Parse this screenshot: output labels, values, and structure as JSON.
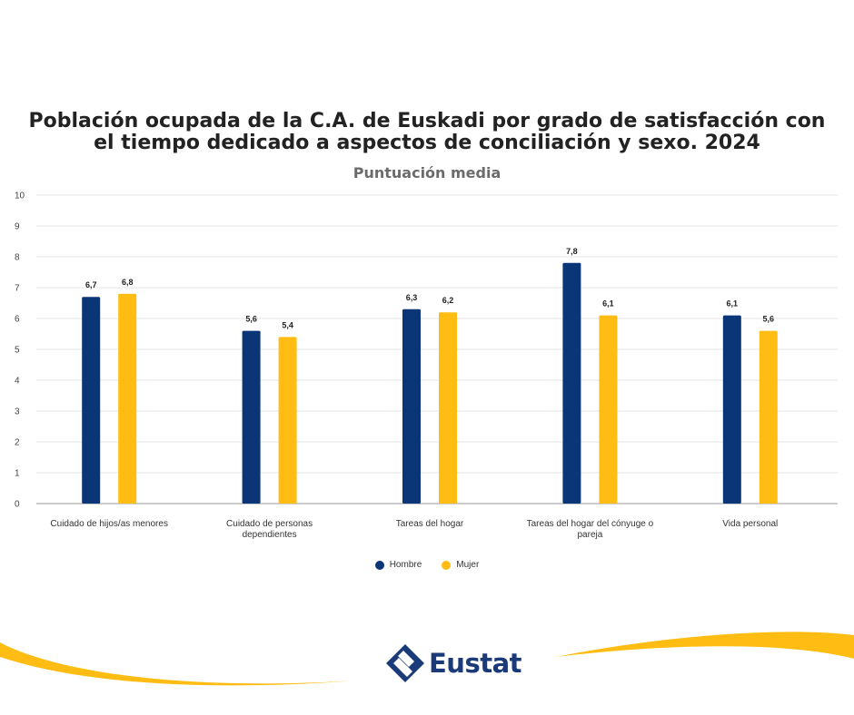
{
  "chart_data": {
    "type": "bar",
    "title": "Población ocupada de la C.A. de Euskadi por grado de satisfacción con el tiempo dedicado a aspectos de conciliación y sexo. 2024",
    "title_lines": [
      "Población ocupada de la C.A. de Euskadi por grado de satisfacción con",
      "el tiempo dedicado a aspectos de conciliación y sexo. 2024"
    ],
    "subtitle": "Puntuación media",
    "categories": [
      "Cuidado de hijos/as menores",
      "Cuidado de personas dependientes",
      "Tareas del hogar",
      "Tareas del hogar del cónyuge o pareja",
      "Vida personal"
    ],
    "category_lines": [
      [
        "Cuidado de hijos/as menores"
      ],
      [
        "Cuidado de personas",
        "dependientes"
      ],
      [
        "Tareas del hogar"
      ],
      [
        "Tareas del hogar del cónyuge o",
        "pareja"
      ],
      [
        "Vida personal"
      ]
    ],
    "series": [
      {
        "name": "Hombre",
        "color": "#0a3577",
        "values": [
          6.7,
          5.6,
          6.3,
          7.8,
          6.1
        ],
        "labels": [
          "6,7",
          "5,6",
          "6,3",
          "7,8",
          "6,1"
        ]
      },
      {
        "name": "Mujer",
        "color": "#ffbd14",
        "values": [
          6.8,
          5.4,
          6.2,
          6.1,
          5.6
        ],
        "labels": [
          "6,8",
          "5,4",
          "6,2",
          "6,1",
          "5,6"
        ]
      }
    ],
    "yticks": [
      "0",
      "1",
      "2",
      "3",
      "4",
      "5",
      "6",
      "7",
      "8",
      "9",
      "10"
    ],
    "ylim": [
      0,
      10
    ],
    "grid": true,
    "legend_position": "bottom-center"
  },
  "logo": {
    "text": "Eustat",
    "color": "#1b3a7a"
  },
  "decor": {
    "swoosh_color": "#ffbd14"
  }
}
